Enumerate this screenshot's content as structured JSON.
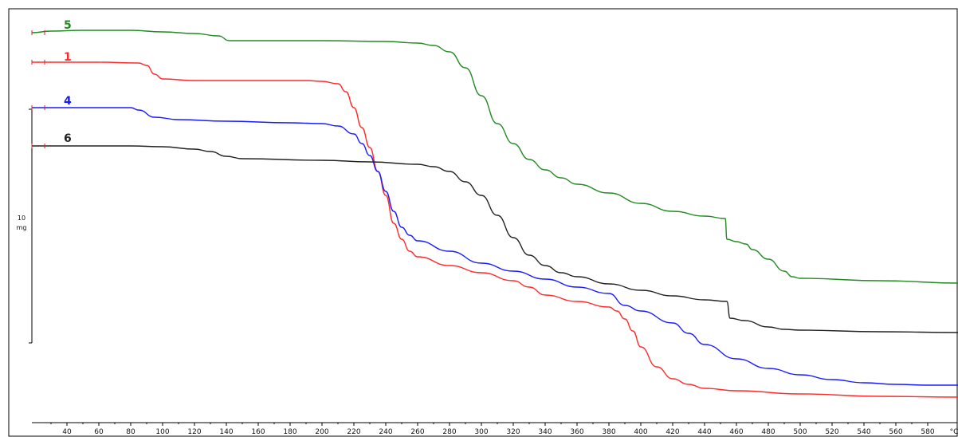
{
  "chart_data": {
    "type": "line",
    "xlabel": "",
    "x_unit": "°C",
    "xlim": [
      18,
      600
    ],
    "x_ticks": [
      40,
      60,
      80,
      100,
      120,
      140,
      160,
      180,
      200,
      220,
      240,
      260,
      280,
      300,
      320,
      340,
      360,
      380,
      400,
      420,
      440,
      460,
      480,
      500,
      520,
      540,
      560,
      580
    ],
    "ylim": [
      0,
      548
    ],
    "y_scale_bar": {
      "value": "10",
      "unit": "mg"
    },
    "grid": false,
    "colors": {
      "5": "#228b22",
      "1": "#ff2a2a",
      "4": "#1a1aff",
      "6": "#222222"
    },
    "series": [
      {
        "label": "5",
        "color": "#228b22",
        "points": [
          [
            18,
            41
          ],
          [
            30,
            39
          ],
          [
            50,
            38
          ],
          [
            80,
            38
          ],
          [
            100,
            40
          ],
          [
            120,
            42
          ],
          [
            135,
            45
          ],
          [
            142,
            51
          ],
          [
            160,
            51
          ],
          [
            200,
            51
          ],
          [
            240,
            52
          ],
          [
            260,
            54
          ],
          [
            270,
            57
          ],
          [
            280,
            65
          ],
          [
            290,
            85
          ],
          [
            300,
            120
          ],
          [
            310,
            155
          ],
          [
            320,
            180
          ],
          [
            330,
            200
          ],
          [
            340,
            213
          ],
          [
            350,
            223
          ],
          [
            360,
            231
          ],
          [
            380,
            242
          ],
          [
            400,
            255
          ],
          [
            420,
            265
          ],
          [
            440,
            271
          ],
          [
            453,
            274
          ],
          [
            454,
            300
          ],
          [
            460,
            303
          ],
          [
            466,
            306
          ],
          [
            470,
            313
          ],
          [
            480,
            325
          ],
          [
            490,
            340
          ],
          [
            495,
            347
          ],
          [
            500,
            349
          ],
          [
            550,
            352
          ],
          [
            600,
            355
          ]
        ]
      },
      {
        "label": "1",
        "color": "#ff2a2a",
        "points": [
          [
            18,
            78
          ],
          [
            60,
            78
          ],
          [
            85,
            79
          ],
          [
            90,
            82
          ],
          [
            95,
            93
          ],
          [
            100,
            99
          ],
          [
            120,
            101
          ],
          [
            160,
            101
          ],
          [
            190,
            101
          ],
          [
            200,
            102
          ],
          [
            210,
            105
          ],
          [
            215,
            115
          ],
          [
            220,
            135
          ],
          [
            225,
            160
          ],
          [
            230,
            185
          ],
          [
            235,
            215
          ],
          [
            240,
            245
          ],
          [
            245,
            280
          ],
          [
            250,
            300
          ],
          [
            255,
            315
          ],
          [
            260,
            322
          ],
          [
            280,
            333
          ],
          [
            300,
            342
          ],
          [
            320,
            352
          ],
          [
            330,
            360
          ],
          [
            340,
            370
          ],
          [
            360,
            378
          ],
          [
            380,
            385
          ],
          [
            385,
            390
          ],
          [
            390,
            400
          ],
          [
            395,
            415
          ],
          [
            400,
            435
          ],
          [
            410,
            460
          ],
          [
            420,
            475
          ],
          [
            430,
            482
          ],
          [
            440,
            487
          ],
          [
            460,
            490
          ],
          [
            500,
            494
          ],
          [
            550,
            497
          ],
          [
            600,
            498
          ]
        ]
      },
      {
        "label": "4",
        "color": "#1a1aff",
        "points": [
          [
            18,
            135
          ],
          [
            60,
            135
          ],
          [
            80,
            135
          ],
          [
            85,
            138
          ],
          [
            95,
            147
          ],
          [
            110,
            150
          ],
          [
            140,
            152
          ],
          [
            180,
            154
          ],
          [
            200,
            155
          ],
          [
            210,
            158
          ],
          [
            220,
            168
          ],
          [
            225,
            180
          ],
          [
            230,
            195
          ],
          [
            235,
            215
          ],
          [
            240,
            240
          ],
          [
            245,
            265
          ],
          [
            250,
            285
          ],
          [
            255,
            295
          ],
          [
            260,
            302
          ],
          [
            280,
            315
          ],
          [
            300,
            330
          ],
          [
            320,
            340
          ],
          [
            340,
            350
          ],
          [
            360,
            360
          ],
          [
            380,
            368
          ],
          [
            390,
            383
          ],
          [
            400,
            390
          ],
          [
            420,
            405
          ],
          [
            430,
            418
          ],
          [
            440,
            432
          ],
          [
            460,
            450
          ],
          [
            480,
            462
          ],
          [
            500,
            470
          ],
          [
            520,
            476
          ],
          [
            540,
            480
          ],
          [
            560,
            482
          ],
          [
            580,
            483
          ],
          [
            600,
            483
          ]
        ]
      },
      {
        "label": "6",
        "color": "#222222",
        "points": [
          [
            18,
            183
          ],
          [
            40,
            183
          ],
          [
            80,
            183
          ],
          [
            100,
            184
          ],
          [
            120,
            187
          ],
          [
            130,
            190
          ],
          [
            140,
            196
          ],
          [
            150,
            199
          ],
          [
            200,
            201
          ],
          [
            230,
            203
          ],
          [
            260,
            206
          ],
          [
            270,
            209
          ],
          [
            280,
            215
          ],
          [
            290,
            228
          ],
          [
            300,
            245
          ],
          [
            310,
            270
          ],
          [
            320,
            298
          ],
          [
            330,
            320
          ],
          [
            340,
            333
          ],
          [
            350,
            342
          ],
          [
            360,
            347
          ],
          [
            380,
            356
          ],
          [
            400,
            364
          ],
          [
            420,
            371
          ],
          [
            440,
            376
          ],
          [
            454,
            378
          ],
          [
            456,
            399
          ],
          [
            465,
            402
          ],
          [
            480,
            410
          ],
          [
            490,
            413
          ],
          [
            500,
            414
          ],
          [
            550,
            416
          ],
          [
            600,
            417
          ]
        ]
      }
    ],
    "series_labels": [
      {
        "text": "5",
        "x": 38,
        "y": 36
      },
      {
        "text": "1",
        "x": 38,
        "y": 76
      },
      {
        "text": "4",
        "x": 38,
        "y": 131
      },
      {
        "text": "6",
        "x": 38,
        "y": 178
      }
    ]
  }
}
